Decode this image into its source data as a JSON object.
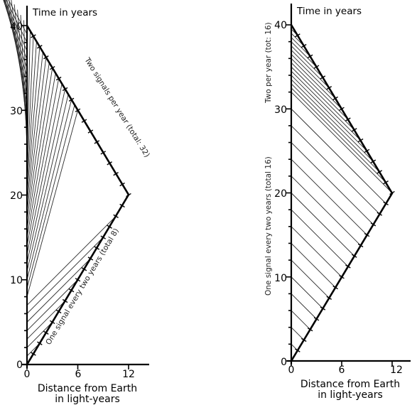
{
  "diagrams": [
    {
      "y_axis_title": "Time in years",
      "x_axis_title_line1": "Distance from Earth",
      "x_axis_title_line2": "in light-years",
      "y_ticks": [
        "0",
        "10",
        "20",
        "30",
        "40"
      ],
      "x_ticks": [
        "0",
        "6",
        "12"
      ],
      "outbound_label": "One signal every two years (total 8)",
      "inbound_label": "Two signals per year (total: 32)"
    },
    {
      "y_axis_title": "Time in years",
      "x_axis_title_line1": "Distance from Earth",
      "x_axis_title_line2": "in light-years",
      "y_ticks": [
        "0",
        "10",
        "20",
        "30",
        "40"
      ],
      "x_ticks": [
        "0",
        "6",
        "12"
      ],
      "earth_outbound_label": "One signal every two years (total 16)",
      "earth_inbound_label": "Two per year (tot: 16)"
    }
  ],
  "chart_data": [
    {
      "type": "spacetime-diagram",
      "description_source": "left panel",
      "x_range": [
        0,
        12
      ],
      "y_range": [
        0,
        40
      ],
      "turnaround": {
        "x": 12,
        "t": 20
      },
      "signal_emission": "from Earth, once per year, toward traveler",
      "outbound_signals_received": 8,
      "inbound_signals_received": 32
    },
    {
      "type": "spacetime-diagram",
      "description_source": "right panel",
      "x_range": [
        0,
        12
      ],
      "y_range": [
        0,
        40
      ],
      "turnaround": {
        "x": 12,
        "t": 20
      },
      "signal_emission": "from traveler, once per year, toward Earth",
      "outbound_signals_received": 16,
      "inbound_signals_received": 16
    }
  ]
}
